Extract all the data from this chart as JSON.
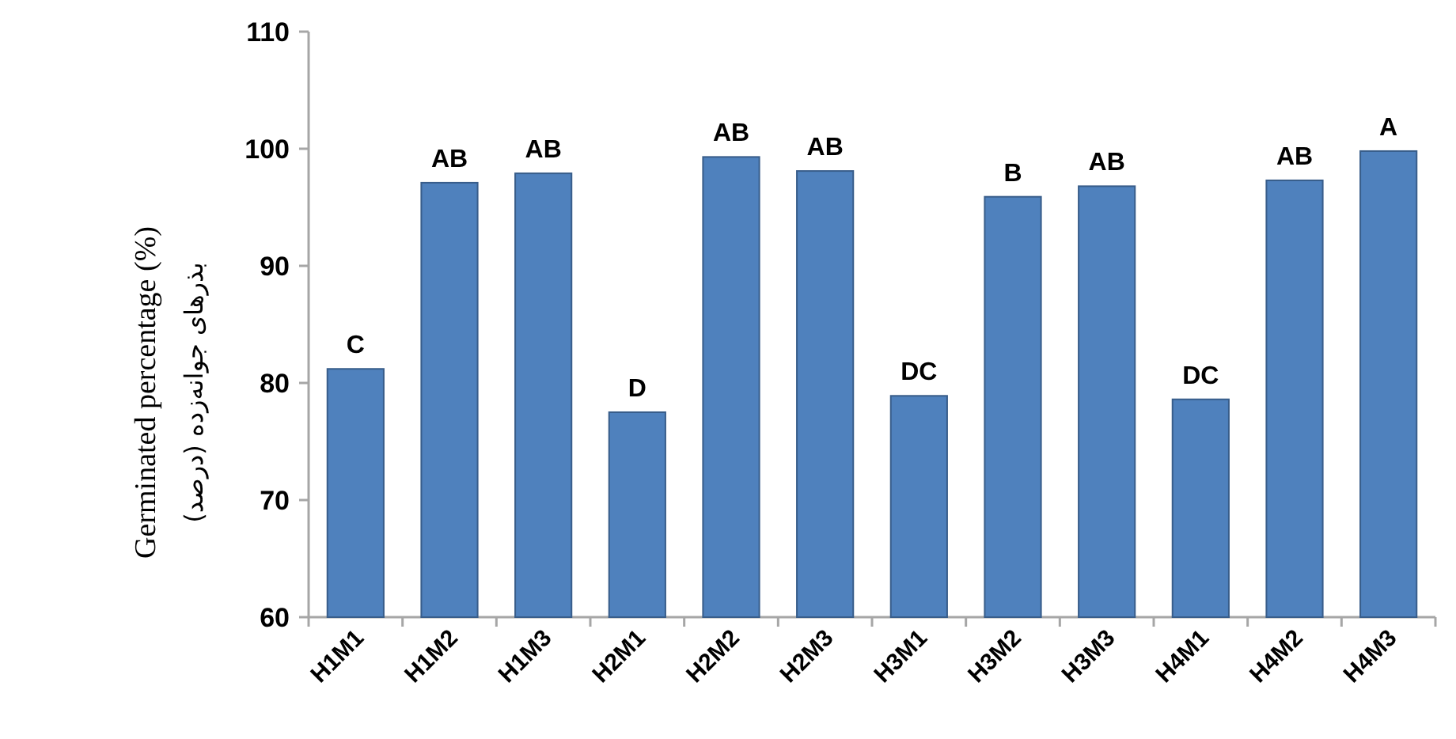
{
  "chart_data": {
    "type": "bar",
    "ylabel": "Germinated percentage (%)",
    "categories": [
      "H1M1",
      "H1M2",
      "H1M3",
      "H2M1",
      "H2M2",
      "H2M3",
      "H3M1",
      "H3M2",
      "H3M3",
      "H4M1",
      "H4M2",
      "H4M3"
    ],
    "values": [
      81.2,
      97.1,
      97.9,
      77.5,
      99.3,
      98.1,
      78.9,
      95.9,
      96.8,
      78.6,
      97.3,
      99.8
    ],
    "color": "#4f81bd",
    "ylim": [
      60,
      110
    ],
    "yticks": [
      60,
      70,
      80,
      90,
      100,
      110
    ],
    "annotations": [
      "بذرهای جوانه‌زده (درصد)",
      {
        "text": "C",
        "x": "H1M1",
        "y": 81.2
      },
      {
        "text": "AB",
        "x": "H1M2",
        "y": 97.1
      },
      {
        "text": "AB",
        "x": "H1M3",
        "y": 97.9
      },
      {
        "text": "D",
        "x": "H2M1",
        "y": 77.5
      },
      {
        "text": "AB",
        "x": "H2M2",
        "y": 99.3
      },
      {
        "text": "AB",
        "x": "H2M3",
        "y": 98.1
      },
      {
        "text": "DC",
        "x": "H3M1",
        "y": 78.9
      },
      {
        "text": "B",
        "x": "H3M2",
        "y": 95.9
      },
      {
        "text": "AB",
        "x": "H3M3",
        "y": 96.8
      },
      {
        "text": "DC",
        "x": "H4M1",
        "y": 78.6
      },
      {
        "text": "AB",
        "x": "H4M2",
        "y": 97.3
      },
      {
        "text": "A",
        "x": "H4M3",
        "y": 99.8
      }
    ]
  }
}
